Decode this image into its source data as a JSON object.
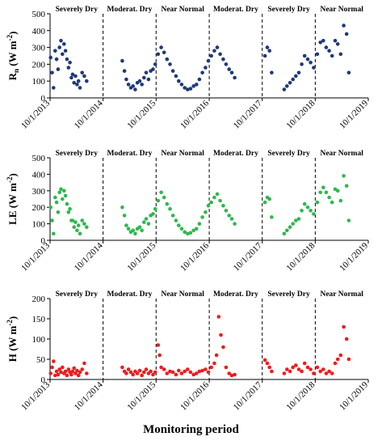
{
  "figure": {
    "xlabel": "Monitoring period",
    "x_ticks": [
      "10/1/2013",
      "10/1/2014",
      "10/1/2015",
      "10/1/2016",
      "10/1/2017",
      "10/1/2018",
      "10/1/2019"
    ],
    "period_labels": [
      {
        "label": "Severely Dry",
        "from": "10/1/2013",
        "to": "10/1/2014"
      },
      {
        "label": "Moderat. Dry",
        "from": "10/1/2014",
        "to": "10/1/2015"
      },
      {
        "label": "Near Normal",
        "from": "10/1/2015",
        "to": "10/1/2016"
      },
      {
        "label": "Moderat. Dry",
        "from": "10/1/2016",
        "to": "10/1/2017"
      },
      {
        "label": "Severely Dry",
        "from": "10/1/2017",
        "to": "10/1/2018"
      },
      {
        "label": "Near Normal",
        "from": "10/1/2018",
        "to": "10/1/2019"
      }
    ],
    "colors": {
      "rn": "#1f3a78",
      "le": "#2db84e",
      "h": "#ee1c1c",
      "divider": "#000000"
    }
  },
  "chart_data": [
    {
      "type": "scatter",
      "ylabel_main": "R",
      "ylabel_sub": "n",
      "ylabel_unit": " (W m",
      "ylabel_exp": "-2",
      "ylabel_close": ")",
      "ylim": [
        0,
        500
      ],
      "yticks": [
        0,
        100,
        200,
        300,
        400,
        500
      ],
      "xlim": [
        "10/1/2013",
        "10/1/2019"
      ],
      "series": [
        {
          "x": [
            "2013-10-05",
            "2013-10-15",
            "2013-10-25",
            "2013-11-05",
            "2013-11-15",
            "2013-11-25",
            "2013-12-05",
            "2013-12-15",
            "2013-12-25",
            "2014-01-05",
            "2014-01-15",
            "2014-01-25",
            "2014-02-05",
            "2014-02-15",
            "2014-02-25",
            "2014-03-05",
            "2014-03-15",
            "2014-03-25",
            "2014-04-05",
            "2014-04-15",
            "2014-04-25",
            "2014-05-10",
            "2014-05-25",
            "2014-06-10",
            "2015-02-10",
            "2015-02-25",
            "2015-03-10",
            "2015-03-25",
            "2015-04-10",
            "2015-04-25",
            "2015-05-10",
            "2015-05-25",
            "2015-06-10",
            "2015-06-25",
            "2015-07-10",
            "2015-07-25",
            "2015-08-10",
            "2015-08-25",
            "2015-09-10",
            "2015-09-25",
            "2015-10-15",
            "2015-11-05",
            "2015-11-25",
            "2015-12-15",
            "2016-01-05",
            "2016-01-25",
            "2016-02-15",
            "2016-03-05",
            "2016-03-25",
            "2016-04-15",
            "2016-05-05",
            "2016-05-25",
            "2016-06-15",
            "2016-07-05",
            "2016-07-25",
            "2016-08-15",
            "2016-09-05",
            "2016-09-25",
            "2016-10-15",
            "2016-11-05",
            "2016-11-25",
            "2016-12-15",
            "2017-01-05",
            "2017-01-25",
            "2017-02-15",
            "2017-03-05",
            "2017-03-25",
            "2017-10-20",
            "2017-11-05",
            "2017-11-20",
            "2017-12-05",
            "2018-03-01",
            "2018-03-20",
            "2018-04-10",
            "2018-04-30",
            "2018-05-20",
            "2018-06-10",
            "2018-06-30",
            "2018-07-20",
            "2018-08-10",
            "2018-08-30",
            "2018-09-20",
            "2018-10-15",
            "2018-11-05",
            "2018-11-25",
            "2018-12-15",
            "2019-01-05",
            "2019-01-25",
            "2019-02-15",
            "2019-03-05",
            "2019-03-25",
            "2019-04-15",
            "2019-05-05",
            "2019-05-20"
          ],
          "y": [
            240,
            150,
            60,
            280,
            230,
            170,
            300,
            340,
            260,
            320,
            280,
            230,
            180,
            210,
            120,
            140,
            90,
            130,
            80,
            100,
            60,
            150,
            130,
            100,
            220,
            160,
            110,
            80,
            60,
            70,
            50,
            90,
            100,
            80,
            120,
            150,
            110,
            160,
            170,
            200,
            260,
            300,
            270,
            230,
            200,
            160,
            130,
            100,
            80,
            60,
            50,
            55,
            70,
            80,
            110,
            150,
            180,
            220,
            250,
            280,
            300,
            260,
            230,
            200,
            170,
            150,
            120,
            250,
            300,
            280,
            150,
            50,
            70,
            90,
            110,
            130,
            150,
            200,
            250,
            230,
            210,
            180,
            260,
            330,
            340,
            300,
            280,
            250,
            340,
            320,
            260,
            430,
            380,
            150
          ],
          "name": ""
        }
      ]
    },
    {
      "type": "scatter",
      "ylabel_main": "LE",
      "ylabel_sub": "",
      "ylabel_unit": " (W m",
      "ylabel_exp": "-2",
      "ylabel_close": ")",
      "ylim": [
        0,
        500
      ],
      "yticks": [
        0,
        100,
        200,
        300,
        400,
        500
      ],
      "xlim": [
        "10/1/2013",
        "10/1/2019"
      ],
      "series": [
        {
          "x": [
            "2013-10-05",
            "2013-10-15",
            "2013-10-25",
            "2013-11-05",
            "2013-11-15",
            "2013-11-25",
            "2013-12-05",
            "2013-12-15",
            "2013-12-25",
            "2014-01-05",
            "2014-01-15",
            "2014-01-25",
            "2014-02-05",
            "2014-02-15",
            "2014-02-25",
            "2014-03-05",
            "2014-03-15",
            "2014-03-25",
            "2014-04-05",
            "2014-04-15",
            "2014-04-25",
            "2014-05-10",
            "2014-05-25",
            "2014-06-10",
            "2015-02-10",
            "2015-02-25",
            "2015-03-10",
            "2015-03-25",
            "2015-04-10",
            "2015-04-25",
            "2015-05-10",
            "2015-05-25",
            "2015-06-10",
            "2015-06-25",
            "2015-07-10",
            "2015-07-25",
            "2015-08-10",
            "2015-08-25",
            "2015-09-10",
            "2015-09-25",
            "2015-10-15",
            "2015-11-05",
            "2015-11-25",
            "2015-12-15",
            "2016-01-05",
            "2016-01-25",
            "2016-02-15",
            "2016-03-05",
            "2016-03-25",
            "2016-04-15",
            "2016-05-05",
            "2016-05-25",
            "2016-06-15",
            "2016-07-05",
            "2016-07-25",
            "2016-08-15",
            "2016-09-05",
            "2016-09-25",
            "2016-10-15",
            "2016-11-05",
            "2016-11-25",
            "2016-12-15",
            "2017-01-05",
            "2017-01-25",
            "2017-02-15",
            "2017-03-05",
            "2017-03-25",
            "2017-10-20",
            "2017-11-05",
            "2017-11-20",
            "2017-12-05",
            "2018-03-01",
            "2018-03-20",
            "2018-04-10",
            "2018-04-30",
            "2018-05-20",
            "2018-06-10",
            "2018-06-30",
            "2018-07-20",
            "2018-08-10",
            "2018-08-30",
            "2018-09-20",
            "2018-10-15",
            "2018-11-05",
            "2018-11-25",
            "2018-12-15",
            "2019-01-05",
            "2019-01-25",
            "2019-02-15",
            "2019-03-05",
            "2019-03-25",
            "2019-04-15",
            "2019-05-05",
            "2019-05-20"
          ],
          "y": [
            200,
            120,
            40,
            260,
            230,
            170,
            290,
            310,
            250,
            300,
            270,
            220,
            170,
            190,
            120,
            120,
            80,
            110,
            60,
            90,
            40,
            120,
            100,
            80,
            200,
            150,
            90,
            70,
            50,
            60,
            40,
            70,
            80,
            60,
            110,
            130,
            100,
            150,
            160,
            190,
            240,
            290,
            260,
            220,
            190,
            150,
            120,
            90,
            70,
            50,
            40,
            45,
            60,
            70,
            100,
            140,
            170,
            210,
            230,
            260,
            280,
            240,
            210,
            180,
            150,
            130,
            100,
            230,
            260,
            250,
            140,
            40,
            60,
            80,
            100,
            120,
            130,
            180,
            220,
            200,
            180,
            160,
            230,
            290,
            320,
            290,
            260,
            230,
            310,
            300,
            240,
            390,
            330,
            120
          ],
          "name": ""
        }
      ]
    },
    {
      "type": "scatter",
      "ylabel_main": "H",
      "ylabel_sub": "",
      "ylabel_unit": " (W m",
      "ylabel_exp": "-2",
      "ylabel_close": ")",
      "ylim": [
        0,
        200
      ],
      "yticks": [
        0,
        50,
        100,
        150,
        200
      ],
      "xlim": [
        "10/1/2013",
        "10/1/2019"
      ],
      "series": [
        {
          "x": [
            "2013-10-05",
            "2013-10-15",
            "2013-10-25",
            "2013-11-05",
            "2013-11-15",
            "2013-11-25",
            "2013-12-05",
            "2013-12-15",
            "2013-12-25",
            "2014-01-05",
            "2014-01-15",
            "2014-01-25",
            "2014-02-05",
            "2014-02-15",
            "2014-02-25",
            "2014-03-05",
            "2014-03-15",
            "2014-03-25",
            "2014-04-05",
            "2014-04-15",
            "2014-04-25",
            "2014-05-10",
            "2014-05-25",
            "2014-06-10",
            "2015-02-10",
            "2015-02-25",
            "2015-03-10",
            "2015-03-25",
            "2015-04-10",
            "2015-04-25",
            "2015-05-10",
            "2015-05-25",
            "2015-06-10",
            "2015-06-25",
            "2015-07-10",
            "2015-07-25",
            "2015-08-10",
            "2015-08-25",
            "2015-09-10",
            "2015-09-25",
            "2015-10-15",
            "2015-10-25",
            "2015-11-05",
            "2015-11-25",
            "2015-12-15",
            "2016-01-05",
            "2016-01-25",
            "2016-02-15",
            "2016-03-05",
            "2016-03-25",
            "2016-04-15",
            "2016-05-05",
            "2016-05-25",
            "2016-06-15",
            "2016-07-05",
            "2016-07-25",
            "2016-08-15",
            "2016-09-05",
            "2016-09-25",
            "2016-10-15",
            "2016-11-05",
            "2016-11-20",
            "2016-12-05",
            "2016-12-20",
            "2017-01-05",
            "2017-01-25",
            "2017-02-15",
            "2017-03-05",
            "2017-03-25",
            "2017-10-20",
            "2017-11-05",
            "2017-11-20",
            "2017-12-05",
            "2018-03-01",
            "2018-03-20",
            "2018-04-10",
            "2018-04-30",
            "2018-05-20",
            "2018-06-10",
            "2018-06-30",
            "2018-07-20",
            "2018-08-10",
            "2018-08-30",
            "2018-09-20",
            "2018-10-15",
            "2018-11-05",
            "2018-11-25",
            "2018-12-15",
            "2019-01-05",
            "2019-01-25",
            "2019-02-15",
            "2019-03-05",
            "2019-03-25",
            "2019-04-15",
            "2019-05-05",
            "2019-05-20"
          ],
          "y": [
            15,
            30,
            45,
            10,
            20,
            12,
            25,
            18,
            30,
            15,
            20,
            10,
            25,
            18,
            12,
            20,
            28,
            15,
            22,
            10,
            18,
            25,
            40,
            15,
            30,
            20,
            15,
            25,
            18,
            12,
            20,
            15,
            22,
            10,
            18,
            25,
            15,
            20,
            12,
            18,
            85,
            60,
            30,
            25,
            15,
            20,
            18,
            12,
            22,
            15,
            20,
            25,
            18,
            12,
            15,
            20,
            22,
            25,
            18,
            30,
            40,
            60,
            155,
            110,
            80,
            30,
            15,
            10,
            12,
            48,
            40,
            30,
            20,
            15,
            25,
            20,
            30,
            35,
            25,
            20,
            40,
            30,
            25,
            15,
            30,
            20,
            25,
            15,
            20,
            15,
            40,
            50,
            60,
            130,
            100,
            50
          ],
          "name": ""
        }
      ]
    }
  ]
}
